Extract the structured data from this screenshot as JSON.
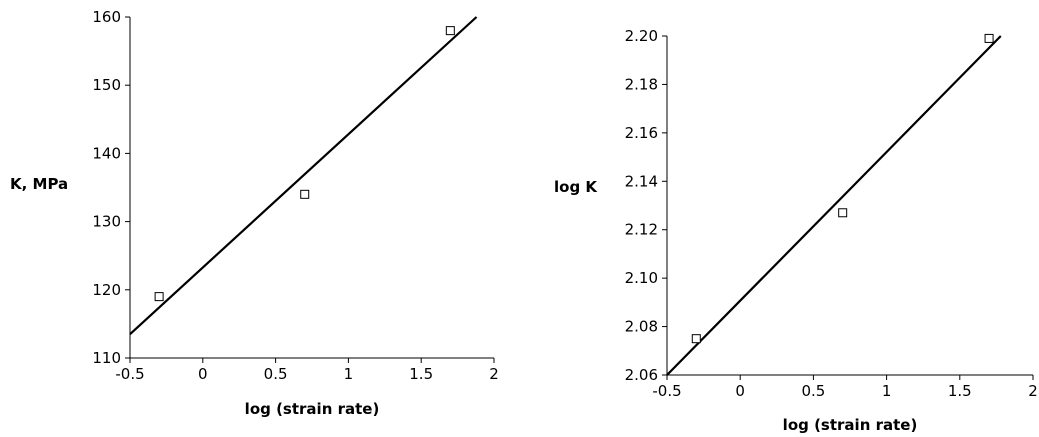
{
  "chart_data": [
    {
      "type": "scatter",
      "xlabel": "log (strain rate)",
      "ylabel": "K, MPa",
      "xlim": [
        -0.5,
        2
      ],
      "ylim": [
        110,
        160
      ],
      "x_ticks": [
        -0.5,
        0,
        0.5,
        1,
        1.5,
        2
      ],
      "x_tick_labels": [
        "-0.5",
        "0",
        "0.5",
        "1",
        "1.5",
        "2"
      ],
      "y_ticks": [
        110,
        120,
        130,
        140,
        150,
        160
      ],
      "y_tick_labels": [
        "110",
        "120",
        "130",
        "140",
        "150",
        "160"
      ],
      "grid": false,
      "marker": "open-square",
      "points": {
        "x": [
          -0.3,
          0.7,
          1.7
        ],
        "y": [
          119,
          134,
          158
        ]
      },
      "fit_line": {
        "x": [
          -0.5,
          1.88
        ],
        "y": [
          113.5,
          160
        ]
      }
    },
    {
      "type": "scatter",
      "xlabel": "log (strain rate)",
      "ylabel": "log K",
      "xlim": [
        -0.5,
        2
      ],
      "ylim": [
        2.06,
        2.2
      ],
      "x_ticks": [
        -0.5,
        0,
        0.5,
        1,
        1.5,
        2
      ],
      "x_tick_labels": [
        "-0.5",
        "0",
        "0.5",
        "1",
        "1.5",
        "2"
      ],
      "y_ticks": [
        2.06,
        2.08,
        2.1,
        2.12,
        2.14,
        2.16,
        2.18,
        2.2
      ],
      "y_tick_labels": [
        "2.06",
        "2.08",
        "2.10",
        "2.12",
        "2.14",
        "2.16",
        "2.18",
        "2.20"
      ],
      "grid": false,
      "marker": "open-square",
      "points": {
        "x": [
          -0.3,
          0.7,
          1.7
        ],
        "y": [
          2.075,
          2.127,
          2.199
        ]
      },
      "fit_line": {
        "x": [
          -0.5,
          1.78
        ],
        "y": [
          2.06,
          2.2
        ]
      }
    }
  ]
}
